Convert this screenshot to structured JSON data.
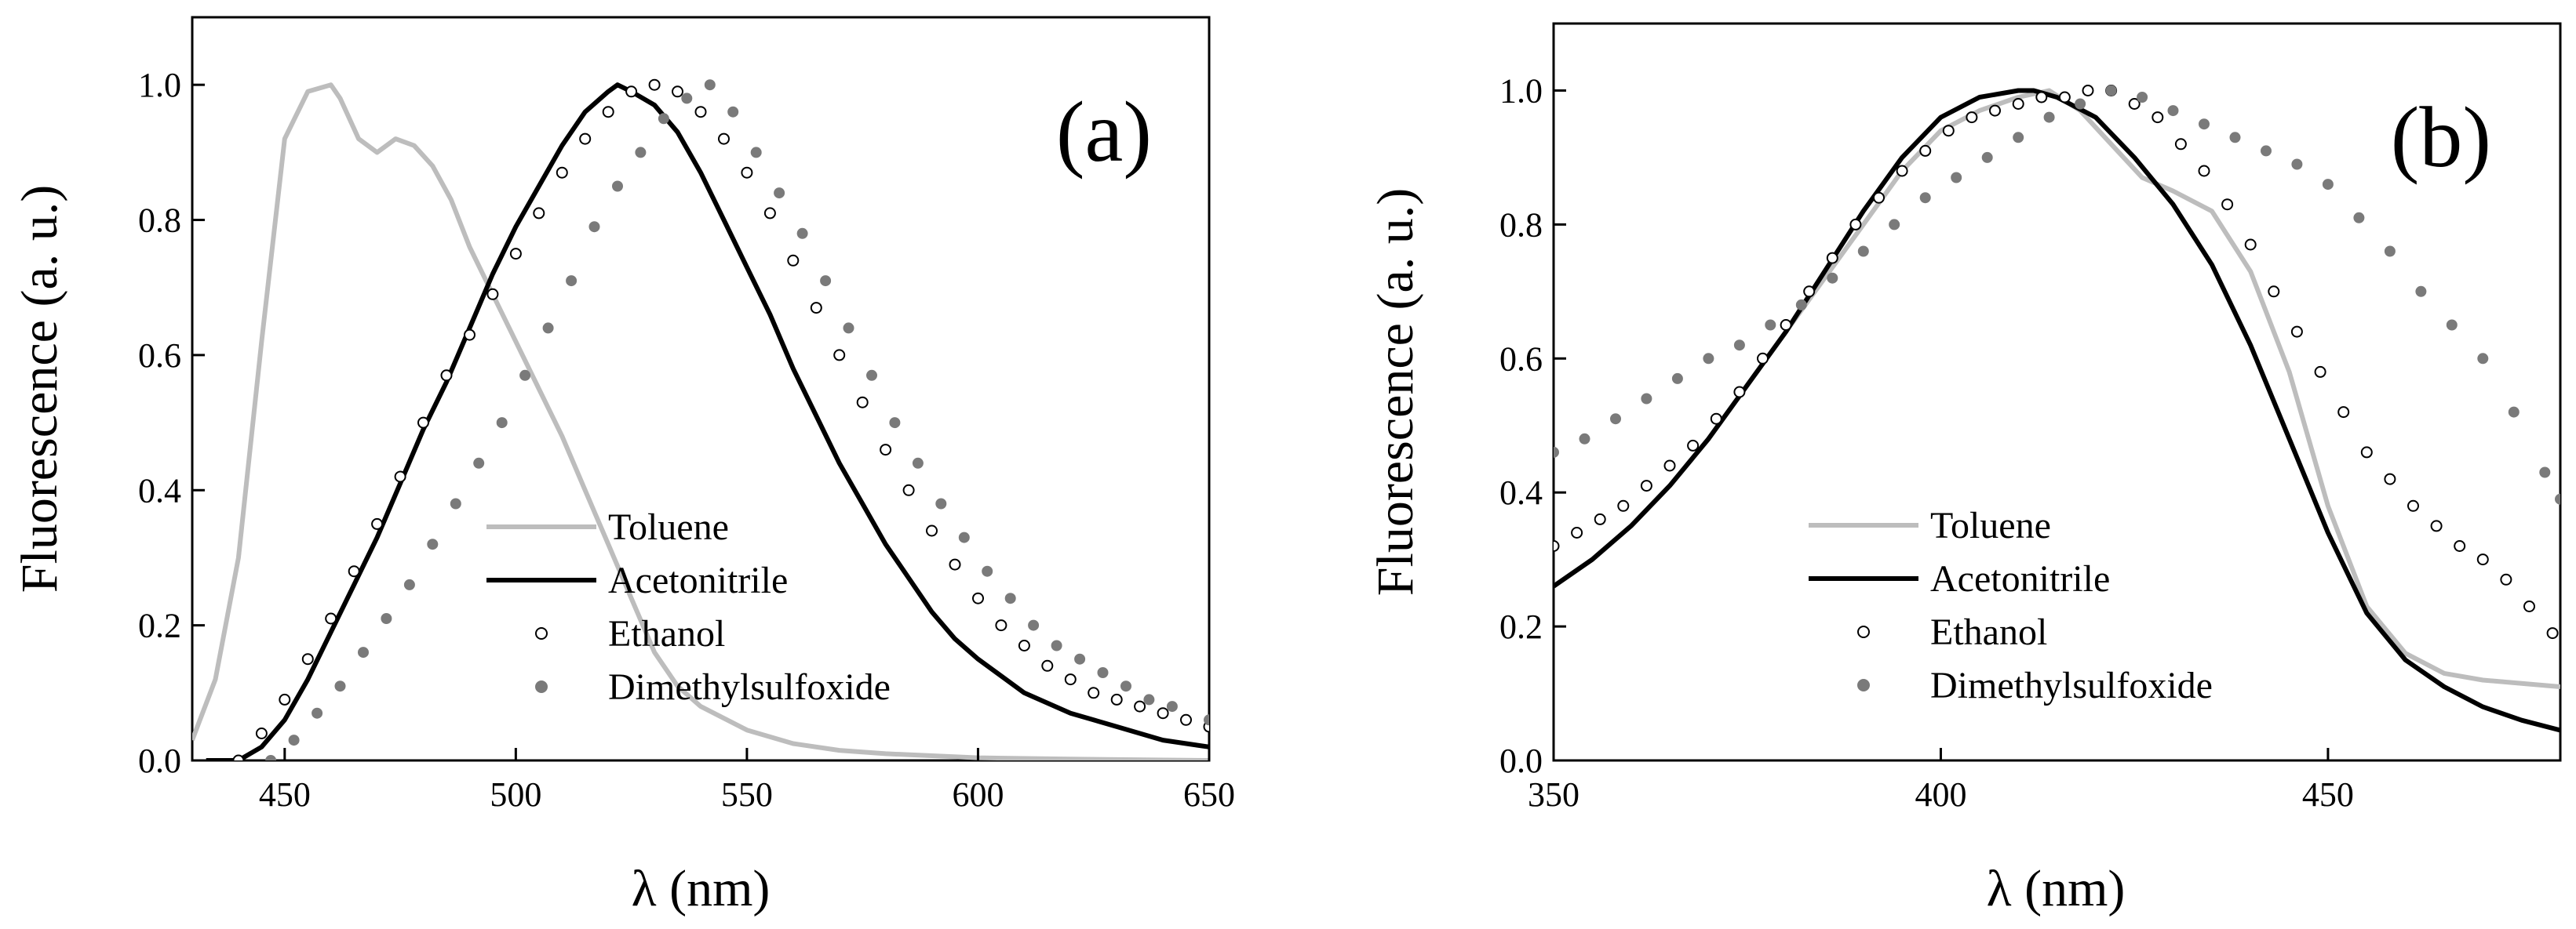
{
  "chart_data": [
    {
      "type": "line",
      "panel_label": "(a)",
      "xlabel": "λ (nm)",
      "ylabel": "Fluorescence (a. u.)",
      "xlim": [
        430,
        650
      ],
      "ylim": [
        0,
        1.1
      ],
      "xticks": [
        450,
        500,
        550,
        600,
        650
      ],
      "xtick_labels": [
        "450",
        "500",
        "550",
        "600",
        "650"
      ],
      "yticks": [
        0,
        0.2,
        0.4,
        0.6,
        0.8,
        1.0
      ],
      "ytick_labels": [
        "0.0",
        "0.2",
        "0.4",
        "0.6",
        "0.8",
        "1.0"
      ],
      "legend_position": "bottom-center",
      "series": [
        {
          "name": "Toluene",
          "style": "line",
          "color": "#bdbdbd",
          "x": [
            430,
            435,
            440,
            445,
            450,
            455,
            460,
            462,
            466,
            470,
            474,
            478,
            482,
            486,
            490,
            495,
            500,
            505,
            510,
            515,
            520,
            525,
            530,
            535,
            540,
            550,
            560,
            570,
            580,
            600,
            620,
            650
          ],
          "y": [
            0.03,
            0.12,
            0.3,
            0.62,
            0.92,
            0.99,
            1.0,
            0.98,
            0.92,
            0.9,
            0.92,
            0.91,
            0.88,
            0.83,
            0.76,
            0.69,
            0.62,
            0.55,
            0.48,
            0.4,
            0.32,
            0.24,
            0.16,
            0.11,
            0.08,
            0.045,
            0.025,
            0.015,
            0.01,
            0.004,
            0.002,
            0.0
          ]
        },
        {
          "name": "Acetonitrile",
          "style": "line",
          "color": "#000000",
          "x": [
            433,
            440,
            445,
            450,
            455,
            460,
            465,
            470,
            475,
            480,
            485,
            490,
            495,
            500,
            505,
            510,
            515,
            520,
            522,
            525,
            530,
            535,
            540,
            545,
            550,
            555,
            560,
            565,
            570,
            575,
            580,
            585,
            590,
            595,
            600,
            610,
            620,
            630,
            640,
            650
          ],
          "y": [
            0.0,
            0.0,
            0.02,
            0.06,
            0.12,
            0.19,
            0.26,
            0.33,
            0.41,
            0.49,
            0.56,
            0.64,
            0.72,
            0.79,
            0.85,
            0.91,
            0.96,
            0.99,
            1.0,
            0.99,
            0.97,
            0.93,
            0.87,
            0.8,
            0.73,
            0.66,
            0.58,
            0.51,
            0.44,
            0.38,
            0.32,
            0.27,
            0.22,
            0.18,
            0.15,
            0.1,
            0.07,
            0.05,
            0.03,
            0.02
          ]
        },
        {
          "name": "Ethanol",
          "style": "open-circles",
          "color": "#000000",
          "x": [
            440,
            445,
            450,
            455,
            460,
            465,
            470,
            475,
            480,
            485,
            490,
            495,
            500,
            505,
            510,
            515,
            520,
            525,
            530,
            535,
            540,
            545,
            550,
            555,
            560,
            565,
            570,
            575,
            580,
            585,
            590,
            595,
            600,
            605,
            610,
            615,
            620,
            625,
            630,
            635,
            640,
            645,
            650
          ],
          "y": [
            0.0,
            0.04,
            0.09,
            0.15,
            0.21,
            0.28,
            0.35,
            0.42,
            0.5,
            0.57,
            0.63,
            0.69,
            0.75,
            0.81,
            0.87,
            0.92,
            0.96,
            0.99,
            1.0,
            0.99,
            0.96,
            0.92,
            0.87,
            0.81,
            0.74,
            0.67,
            0.6,
            0.53,
            0.46,
            0.4,
            0.34,
            0.29,
            0.24,
            0.2,
            0.17,
            0.14,
            0.12,
            0.1,
            0.09,
            0.08,
            0.07,
            0.06,
            0.05
          ]
        },
        {
          "name": "Dimethylsulfoxide",
          "style": "filled-circles",
          "color": "#7a7a7a",
          "x": [
            447,
            452,
            457,
            462,
            467,
            472,
            477,
            482,
            487,
            492,
            497,
            502,
            507,
            512,
            517,
            522,
            527,
            532,
            537,
            542,
            547,
            552,
            557,
            562,
            567,
            572,
            577,
            582,
            587,
            592,
            597,
            602,
            607,
            612,
            617,
            622,
            627,
            632,
            637,
            642,
            650
          ],
          "y": [
            0.0,
            0.03,
            0.07,
            0.11,
            0.16,
            0.21,
            0.26,
            0.32,
            0.38,
            0.44,
            0.5,
            0.57,
            0.64,
            0.71,
            0.79,
            0.85,
            0.9,
            0.95,
            0.98,
            1.0,
            0.96,
            0.9,
            0.84,
            0.78,
            0.71,
            0.64,
            0.57,
            0.5,
            0.44,
            0.38,
            0.33,
            0.28,
            0.24,
            0.2,
            0.17,
            0.15,
            0.13,
            0.11,
            0.09,
            0.08,
            0.06
          ]
        }
      ]
    },
    {
      "type": "line",
      "panel_label": "(b)",
      "xlabel": "λ (nm)",
      "ylabel": "Fluorescence (a. u.)",
      "xlim": [
        350,
        480
      ],
      "ylim": [
        0,
        1.1
      ],
      "xticks": [
        350,
        400,
        450
      ],
      "xtick_labels": [
        "350",
        "400",
        "450"
      ],
      "yticks": [
        0,
        0.2,
        0.4,
        0.6,
        0.8,
        1.0
      ],
      "ytick_labels": [
        "0.0",
        "0.2",
        "0.4",
        "0.6",
        "0.8",
        "1.0"
      ],
      "legend_position": "bottom-center",
      "series": [
        {
          "name": "Toluene",
          "style": "line",
          "color": "#bdbdbd",
          "x": [
            350,
            355,
            360,
            365,
            370,
            375,
            380,
            385,
            390,
            395,
            400,
            405,
            410,
            414,
            418,
            422,
            426,
            430,
            435,
            440,
            445,
            450,
            455,
            460,
            465,
            470,
            475,
            480
          ],
          "y": [
            0.26,
            0.3,
            0.35,
            0.41,
            0.48,
            0.56,
            0.64,
            0.72,
            0.8,
            0.88,
            0.94,
            0.97,
            0.99,
            1.0,
            0.97,
            0.92,
            0.87,
            0.85,
            0.82,
            0.73,
            0.58,
            0.38,
            0.23,
            0.16,
            0.13,
            0.12,
            0.115,
            0.11
          ]
        },
        {
          "name": "Acetonitrile",
          "style": "line",
          "color": "#000000",
          "x": [
            350,
            355,
            360,
            365,
            370,
            375,
            380,
            385,
            390,
            395,
            400,
            405,
            410,
            412,
            415,
            420,
            425,
            430,
            435,
            440,
            445,
            450,
            455,
            460,
            465,
            470,
            475,
            480
          ],
          "y": [
            0.26,
            0.3,
            0.35,
            0.41,
            0.48,
            0.56,
            0.64,
            0.73,
            0.82,
            0.9,
            0.96,
            0.99,
            1.0,
            1.0,
            0.99,
            0.96,
            0.9,
            0.83,
            0.74,
            0.62,
            0.48,
            0.34,
            0.22,
            0.15,
            0.11,
            0.08,
            0.06,
            0.045
          ]
        },
        {
          "name": "Ethanol",
          "style": "open-circles",
          "color": "#000000",
          "x": [
            350,
            353,
            356,
            359,
            362,
            365,
            368,
            371,
            374,
            377,
            380,
            383,
            386,
            389,
            392,
            395,
            398,
            401,
            404,
            407,
            410,
            413,
            416,
            419,
            422,
            425,
            428,
            431,
            434,
            437,
            440,
            443,
            446,
            449,
            452,
            455,
            458,
            461,
            464,
            467,
            470,
            473,
            476,
            479
          ],
          "y": [
            0.32,
            0.34,
            0.36,
            0.38,
            0.41,
            0.44,
            0.47,
            0.51,
            0.55,
            0.6,
            0.65,
            0.7,
            0.75,
            0.8,
            0.84,
            0.88,
            0.91,
            0.94,
            0.96,
            0.97,
            0.98,
            0.99,
            0.99,
            1.0,
            1.0,
            0.98,
            0.96,
            0.92,
            0.88,
            0.83,
            0.77,
            0.7,
            0.64,
            0.58,
            0.52,
            0.46,
            0.42,
            0.38,
            0.35,
            0.32,
            0.3,
            0.27,
            0.23,
            0.19
          ]
        },
        {
          "name": "Dimethylsulfoxide",
          "style": "filled-circles",
          "color": "#7a7a7a",
          "x": [
            350,
            354,
            358,
            362,
            366,
            370,
            374,
            378,
            382,
            386,
            390,
            394,
            398,
            402,
            406,
            410,
            414,
            418,
            422,
            426,
            430,
            434,
            438,
            442,
            446,
            450,
            454,
            458,
            462,
            466,
            470,
            474,
            478,
            480
          ],
          "y": [
            0.46,
            0.48,
            0.51,
            0.54,
            0.57,
            0.6,
            0.62,
            0.65,
            0.68,
            0.72,
            0.76,
            0.8,
            0.84,
            0.87,
            0.9,
            0.93,
            0.96,
            0.98,
            1.0,
            0.99,
            0.97,
            0.95,
            0.93,
            0.91,
            0.89,
            0.86,
            0.81,
            0.76,
            0.7,
            0.65,
            0.6,
            0.52,
            0.43,
            0.39
          ]
        }
      ]
    }
  ]
}
